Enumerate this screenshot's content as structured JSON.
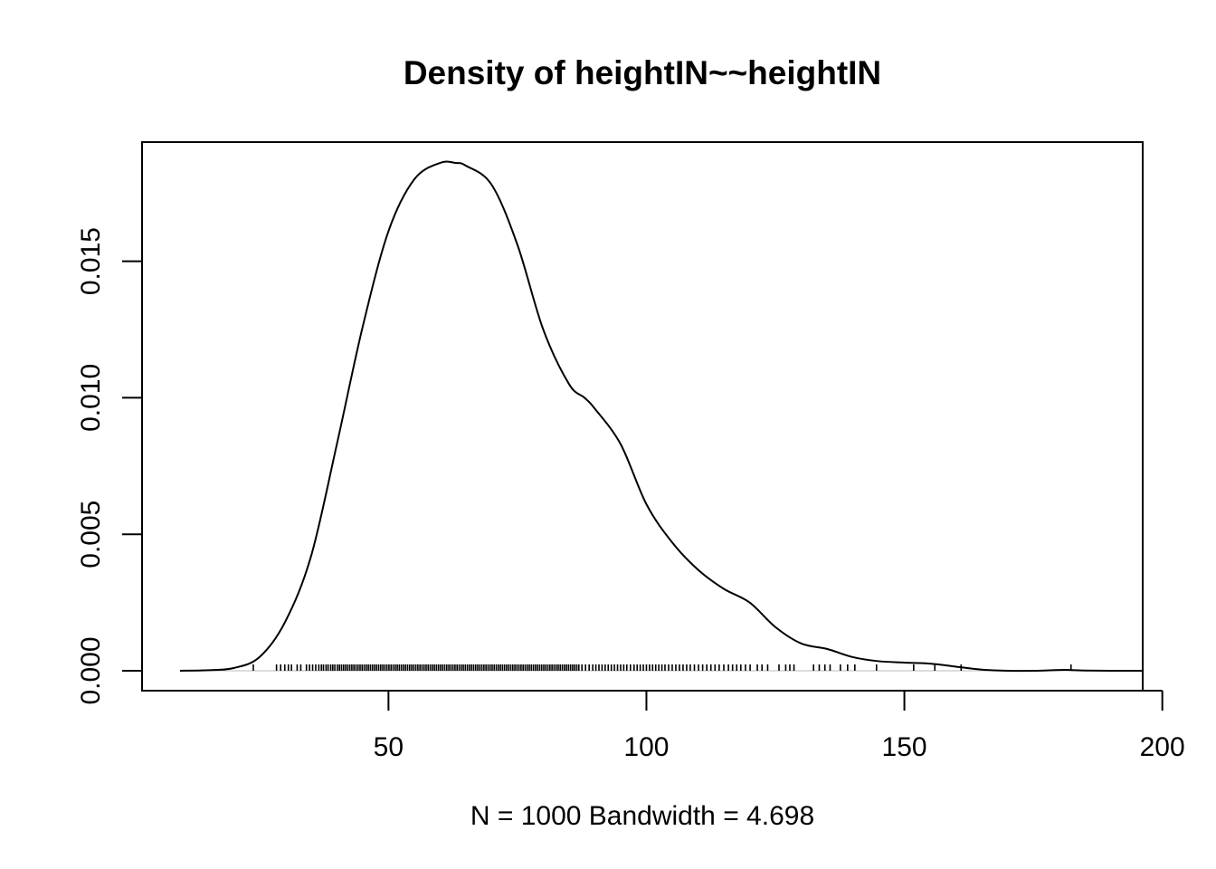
{
  "chart_data": {
    "type": "line",
    "title": "Density of heightIN~~heightIN",
    "xlabel": "N = 1000   Bandwidth = 4.698",
    "ylabel": "",
    "xlim": [
      9.6,
      196.2
    ],
    "ylim": [
      0,
      0.0186
    ],
    "x_ticks": [
      50,
      100,
      150,
      200
    ],
    "x_tick_labels": [
      "50",
      "100",
      "150",
      "200"
    ],
    "y_ticks": [
      0,
      0.005,
      0.01,
      0.015
    ],
    "y_tick_labels": [
      "0.000",
      "0.005",
      "0.010",
      "0.015"
    ],
    "grid": false,
    "zero_line": true,
    "series": [
      {
        "x": [
          9.6,
          15,
          20,
          25,
          30,
          35,
          40,
          45,
          50,
          55,
          60,
          63,
          65,
          70,
          75,
          80,
          85,
          88,
          90,
          95,
          100,
          105,
          110,
          115,
          120,
          125,
          130,
          135,
          140,
          145,
          150,
          155,
          160,
          165,
          170,
          175,
          180,
          182,
          185,
          190,
          196.2
        ],
        "y": [
          0.0,
          2e-05,
          0.0001,
          0.0005,
          0.0018,
          0.0042,
          0.0083,
          0.0126,
          0.0161,
          0.018,
          0.0186,
          0.0186,
          0.0185,
          0.0178,
          0.0156,
          0.0125,
          0.0105,
          0.01,
          0.0096,
          0.0083,
          0.0061,
          0.0047,
          0.0037,
          0.003,
          0.0025,
          0.0016,
          0.001,
          0.0008,
          0.0005,
          0.00035,
          0.0003,
          0.00026,
          0.00015,
          4e-05,
          0.0,
          0.0,
          3e-05,
          3e-05,
          1e-05,
          0.0,
          0.0
        ]
      }
    ],
    "rug": [
      23.8,
      28.3,
      29.1,
      29.9,
      30.6,
      31.2,
      32.3,
      33.0,
      34.1,
      34.7,
      35.3,
      35.9,
      36.5,
      37.0,
      37.4,
      37.9,
      38.3,
      38.8,
      39.2,
      39.6,
      40.1,
      40.5,
      40.9,
      41.3,
      41.7,
      42.1,
      42.5,
      42.9,
      43.3,
      43.7,
      44.1,
      44.5,
      44.9,
      45.3,
      45.7,
      46.1,
      46.5,
      46.9,
      47.3,
      47.7,
      48.1,
      48.5,
      48.9,
      49.3,
      49.7,
      50.1,
      50.5,
      50.9,
      51.3,
      51.7,
      52.1,
      52.5,
      52.9,
      53.3,
      53.7,
      54.1,
      54.5,
      54.9,
      55.3,
      55.7,
      56.1,
      56.5,
      56.9,
      57.3,
      57.7,
      58.1,
      58.5,
      58.9,
      59.3,
      59.7,
      60.1,
      60.5,
      60.9,
      61.3,
      61.7,
      62.1,
      62.5,
      62.9,
      63.3,
      63.7,
      64.1,
      64.5,
      64.9,
      65.3,
      65.7,
      66.1,
      66.5,
      66.9,
      67.3,
      67.7,
      68.1,
      68.5,
      68.9,
      69.3,
      69.7,
      70.1,
      70.5,
      70.9,
      71.3,
      71.7,
      72.1,
      72.5,
      72.9,
      73.3,
      73.7,
      74.1,
      74.5,
      74.9,
      75.3,
      75.7,
      76.1,
      76.5,
      76.9,
      77.3,
      77.7,
      78.1,
      78.5,
      78.9,
      79.3,
      79.7,
      80.1,
      80.5,
      80.9,
      81.3,
      81.7,
      82.1,
      82.5,
      82.9,
      83.3,
      83.7,
      84.1,
      84.5,
      84.9,
      85.3,
      85.7,
      86.1,
      86.5,
      86.9,
      87.5,
      88.2,
      88.9,
      89.6,
      90.2,
      90.8,
      91.4,
      92.0,
      92.6,
      93.2,
      93.8,
      94.4,
      95.0,
      95.6,
      96.2,
      96.9,
      97.6,
      98.2,
      98.8,
      99.4,
      100.0,
      100.6,
      101.2,
      101.8,
      102.4,
      103.0,
      103.6,
      104.3,
      105.0,
      105.7,
      106.4,
      107.1,
      107.8,
      108.5,
      109.3,
      110.1,
      110.9,
      111.7,
      112.5,
      113.3,
      114.1,
      115.0,
      115.9,
      116.7,
      117.5,
      118.3,
      119.2,
      120.1,
      121.5,
      122.4,
      123.5,
      125.7,
      127.0,
      127.8,
      128.6,
      132.4,
      133.5,
      134.6,
      135.6,
      137.6,
      139.0,
      140.4,
      144.6,
      151.8,
      155.9,
      161.0,
      182.3
    ]
  }
}
